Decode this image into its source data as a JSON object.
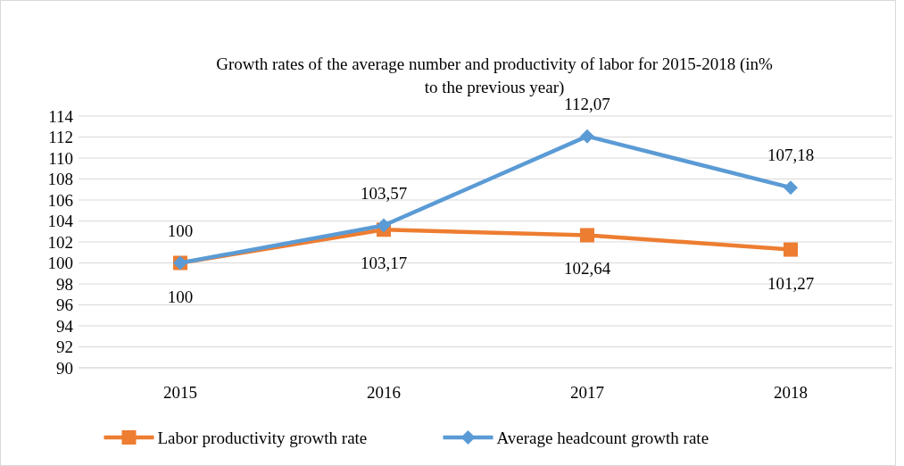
{
  "chart_data": {
    "type": "line",
    "title": "Growth rates of the average number and productivity of labor for 2015-2018 (in% to the previous year)",
    "categories": [
      "2015",
      "2016",
      "2017",
      "2018"
    ],
    "series": [
      {
        "name": "Labor productivity growth rate",
        "color": "#ed7d31",
        "marker": "square",
        "values": [
          100,
          103.17,
          102.64,
          101.27
        ],
        "value_labels": [
          "100",
          "103,17",
          "102,64",
          "101,27"
        ]
      },
      {
        "name": "Average headcount growth rate",
        "color": "#5b9bd5",
        "marker": "diamond",
        "values": [
          100,
          103.57,
          112.07,
          107.18
        ],
        "value_labels": [
          "100",
          "103,57",
          "112,07",
          "107,18"
        ]
      }
    ],
    "ylim": [
      90,
      114
    ],
    "yticks": [
      90,
      92,
      94,
      96,
      98,
      100,
      102,
      104,
      106,
      108,
      110,
      112,
      114
    ],
    "grid": "y",
    "legend": "bottom"
  }
}
